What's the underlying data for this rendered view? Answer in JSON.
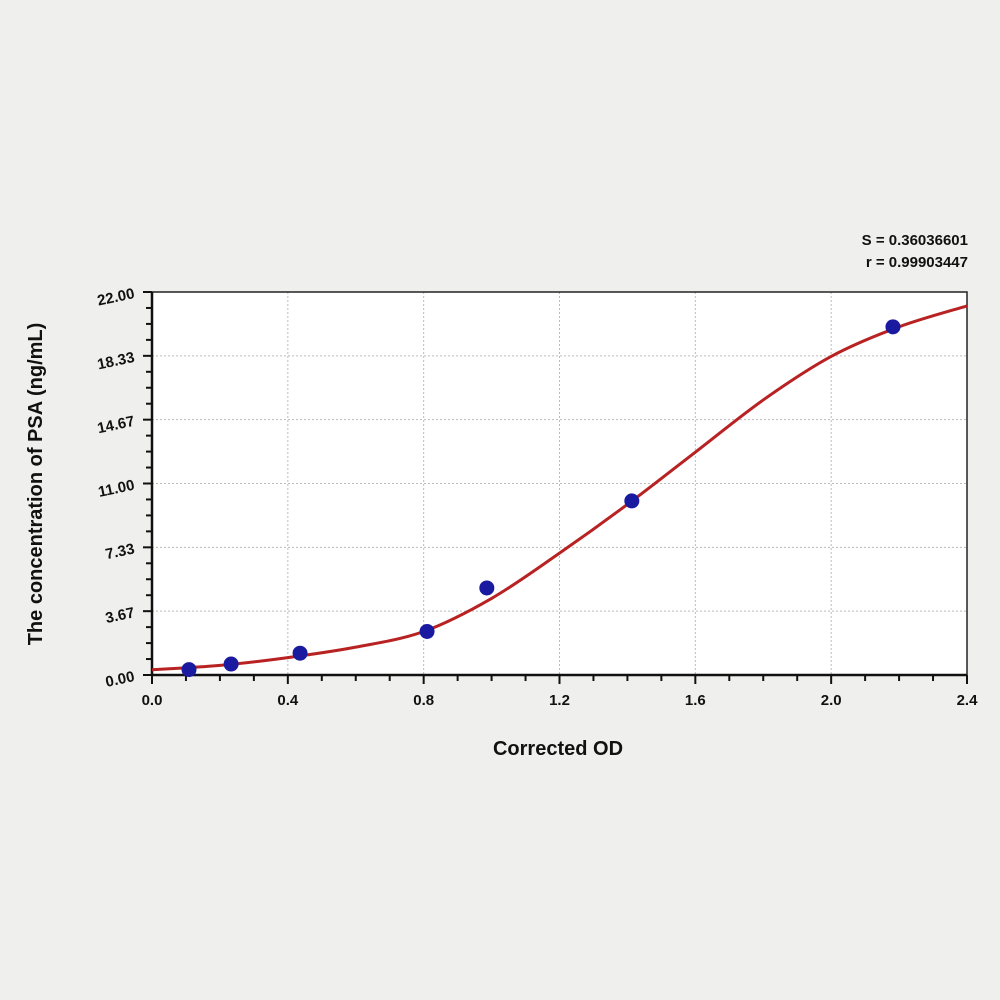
{
  "chart_data": {
    "type": "scatter",
    "title": "",
    "xlabel": "Corrected OD",
    "ylabel": "The concentration of PSA (ng/mL)",
    "xlim": [
      0,
      2.4
    ],
    "ylim": [
      0,
      22
    ],
    "x_ticks": [
      "0.0",
      "0.4",
      "0.8",
      "1.2",
      "1.6",
      "2.0",
      "2.4"
    ],
    "y_ticks": [
      "0.00",
      "3.67",
      "7.33",
      "11.00",
      "14.67",
      "18.33",
      "22.00"
    ],
    "grid": true,
    "annotations": [
      "S = 0.36036601",
      "r = 0.99903447"
    ],
    "points": {
      "x": [
        0.109,
        0.233,
        0.436,
        0.81,
        0.986,
        1.413,
        2.182
      ],
      "y": [
        0.31,
        0.63,
        1.25,
        2.5,
        5,
        10,
        20
      ],
      "color": "#1a1aa0"
    },
    "fit_curve": {
      "x": [
        0,
        0.2,
        0.4,
        0.6,
        0.8,
        1.0,
        1.2,
        1.4,
        1.6,
        1.8,
        2.0,
        2.2,
        2.4
      ],
      "y": [
        0.3,
        0.55,
        1.0,
        1.6,
        2.5,
        4.4,
        7.0,
        9.8,
        12.8,
        15.8,
        18.3,
        20.0,
        21.2
      ],
      "color": "#b82222"
    }
  }
}
